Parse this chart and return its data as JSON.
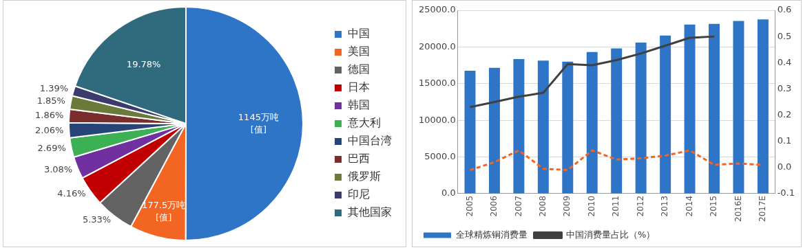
{
  "chart_data": [
    {
      "type": "pie",
      "categories": [
        "中国",
        "美国",
        "德国",
        "日本",
        "韩国",
        "意大利",
        "中国台湾",
        "巴西",
        "俄罗斯",
        "印尼",
        "其他国家"
      ],
      "values": [
        50.04,
        7.76,
        5.33,
        4.16,
        3.08,
        2.69,
        2.06,
        1.86,
        1.85,
        1.39,
        19.78
      ],
      "value_labels": [
        null,
        null,
        "5.33%",
        "4.16%",
        "3.08%",
        "2.69%",
        "2.06%",
        "1.86%",
        "1.85%",
        "1.39%",
        "19.78%"
      ],
      "colors": [
        "#2e75c8",
        "#f26522",
        "#636363",
        "#c00000",
        "#7030a0",
        "#3cb054",
        "#264478",
        "#7b2c2c",
        "#6b7a3a",
        "#3c3c6c",
        "#2f6b7c"
      ],
      "annotations": [
        {
          "text": "1145万吨\n[值]",
          "x": "中国"
        },
        {
          "text": "177.5万吨\n[值]",
          "x": "美国"
        }
      ],
      "legend": "right"
    },
    {
      "type": "bar",
      "categories": [
        "2005",
        "2006",
        "2007",
        "2008",
        "2009",
        "2010",
        "2011",
        "2012",
        "2013",
        "2014",
        "2015",
        "2016E",
        "2017E"
      ],
      "series": [
        {
          "name": "全球精炼铜消费量",
          "color": "#2e75c8",
          "values": [
            16750,
            17150,
            18350,
            18150,
            18000,
            19300,
            19800,
            20600,
            21550,
            23050,
            23150,
            23550,
            23750
          ]
        },
        {
          "type": "line",
          "axis": "y2",
          "color": "#f26522",
          "line_style": "dashed",
          "values": [
            -0.01,
            0.02,
            0.065,
            -0.005,
            -0.01,
            0.065,
            0.03,
            0.035,
            0.045,
            0.065,
            0.01,
            0.015,
            0.01
          ]
        },
        {
          "type": "line",
          "axis": "y2",
          "name": "中国消费量占比（%）",
          "color": "#404040",
          "line_style": "solid",
          "values": [
            0.23,
            0.25,
            0.27,
            0.285,
            0.395,
            0.39,
            0.41,
            0.435,
            0.465,
            0.495,
            0.5,
            null,
            null
          ]
        }
      ],
      "ylim": [
        0,
        25000
      ],
      "yticks": [
        {
          "value": 0,
          "label": "0.0"
        },
        {
          "value": 5000,
          "label": "5000.0"
        },
        {
          "value": 10000,
          "label": "10000.0"
        },
        {
          "value": 15000,
          "label": "15000.0"
        },
        {
          "value": 20000,
          "label": "20000.0"
        },
        {
          "value": 25000,
          "label": "25000.0"
        }
      ],
      "y2lim": [
        -0.1,
        0.6
      ],
      "y2ticks": [
        -0.1,
        {
          "value": 0,
          "label": "0.0"
        },
        0.1,
        0.2,
        0.3,
        0.4,
        0.5,
        0.6
      ],
      "grid": "y",
      "legend": "bottom",
      "marker": "none"
    }
  ]
}
